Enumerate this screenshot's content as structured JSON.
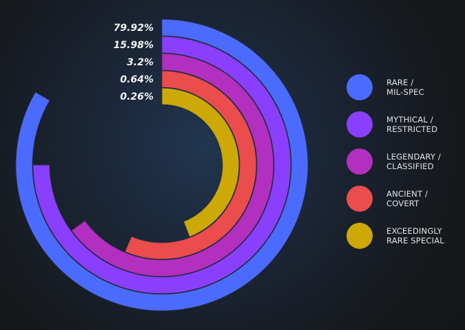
{
  "chart_data": {
    "type": "radial-bar",
    "series": [
      {
        "name": "RARE /\nMIL-SPEC",
        "value": 79.92,
        "label": "79.92%",
        "color": "#4b6bff"
      },
      {
        "name": "MYTHICAL /\nRESTRICTED",
        "value": 15.98,
        "label": "15.98%",
        "color": "#8a3ffc"
      },
      {
        "name": "LEGENDARY /\nCLASSIFIED",
        "value": 3.2,
        "label": "3.2%",
        "color": "#b22fc0"
      },
      {
        "name": "ANCIENT /\nCOVERT",
        "value": 0.64,
        "label": "0.64%",
        "color": "#eb4c4c"
      },
      {
        "name": "EXCEEDINGLY\nRARE SPECIAL",
        "value": 0.26,
        "label": "0.26%",
        "color": "#cca906"
      }
    ],
    "legend_position": "right"
  }
}
